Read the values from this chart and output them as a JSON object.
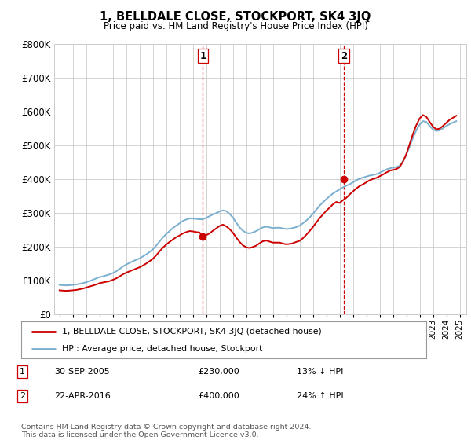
{
  "title": "1, BELLDALE CLOSE, STOCKPORT, SK4 3JQ",
  "subtitle": "Price paid vs. HM Land Registry's House Price Index (HPI)",
  "ylabel_ticks": [
    "£0",
    "£100K",
    "£200K",
    "£300K",
    "£400K",
    "£500K",
    "£600K",
    "£700K",
    "£800K"
  ],
  "ytick_values": [
    0,
    100000,
    200000,
    300000,
    400000,
    500000,
    600000,
    700000,
    800000
  ],
  "ylim": [
    0,
    800000
  ],
  "xlim_start": 1994.6,
  "xlim_end": 2025.5,
  "sale1_date": 2005.75,
  "sale1_price": 230000,
  "sale1_label": "1",
  "sale1_hpi_note": "13% ↓ HPI",
  "sale1_date_str": "30-SEP-2005",
  "sale2_date": 2016.32,
  "sale2_price": 400000,
  "sale2_label": "2",
  "sale2_hpi_note": "24% ↑ HPI",
  "sale2_date_str": "22-APR-2016",
  "legend_line1": "1, BELLDALE CLOSE, STOCKPORT, SK4 3JQ (detached house)",
  "legend_line2": "HPI: Average price, detached house, Stockport",
  "footnote": "Contains HM Land Registry data © Crown copyright and database right 2024.\nThis data is licensed under the Open Government Licence v3.0.",
  "red_color": "#cc0000",
  "blue_color": "#7aafcf",
  "dashed_color": "#cc0000",
  "background_color": "#ffffff",
  "grid_color": "#cccccc",
  "hpi_data_x": [
    1995.0,
    1995.25,
    1995.5,
    1995.75,
    1996.0,
    1996.25,
    1996.5,
    1996.75,
    1997.0,
    1997.25,
    1997.5,
    1997.75,
    1998.0,
    1998.25,
    1998.5,
    1998.75,
    1999.0,
    1999.25,
    1999.5,
    1999.75,
    2000.0,
    2000.25,
    2000.5,
    2000.75,
    2001.0,
    2001.25,
    2001.5,
    2001.75,
    2002.0,
    2002.25,
    2002.5,
    2002.75,
    2003.0,
    2003.25,
    2003.5,
    2003.75,
    2004.0,
    2004.25,
    2004.5,
    2004.75,
    2005.0,
    2005.25,
    2005.5,
    2005.75,
    2006.0,
    2006.25,
    2006.5,
    2006.75,
    2007.0,
    2007.25,
    2007.5,
    2007.75,
    2008.0,
    2008.25,
    2008.5,
    2008.75,
    2009.0,
    2009.25,
    2009.5,
    2009.75,
    2010.0,
    2010.25,
    2010.5,
    2010.75,
    2011.0,
    2011.25,
    2011.5,
    2011.75,
    2012.0,
    2012.25,
    2012.5,
    2012.75,
    2013.0,
    2013.25,
    2013.5,
    2013.75,
    2014.0,
    2014.25,
    2014.5,
    2014.75,
    2015.0,
    2015.25,
    2015.5,
    2015.75,
    2016.0,
    2016.25,
    2016.5,
    2016.75,
    2017.0,
    2017.25,
    2017.5,
    2017.75,
    2018.0,
    2018.25,
    2018.5,
    2018.75,
    2019.0,
    2019.25,
    2019.5,
    2019.75,
    2020.0,
    2020.25,
    2020.5,
    2020.75,
    2021.0,
    2021.25,
    2021.5,
    2021.75,
    2022.0,
    2022.25,
    2022.5,
    2022.75,
    2023.0,
    2023.25,
    2023.5,
    2023.75,
    2024.0,
    2024.25,
    2024.5,
    2024.75
  ],
  "hpi_data_y": [
    88000,
    87000,
    86500,
    87000,
    88000,
    89000,
    91000,
    93000,
    96000,
    99000,
    103000,
    107000,
    111000,
    113000,
    116000,
    119000,
    123000,
    128000,
    135000,
    142000,
    148000,
    153000,
    158000,
    162000,
    166000,
    172000,
    178000,
    185000,
    193000,
    204000,
    216000,
    228000,
    238000,
    247000,
    256000,
    263000,
    270000,
    277000,
    281000,
    284000,
    284000,
    283000,
    282000,
    282000,
    286000,
    291000,
    296000,
    300000,
    305000,
    308000,
    306000,
    298000,
    287000,
    272000,
    258000,
    248000,
    242000,
    240000,
    243000,
    247000,
    253000,
    258000,
    260000,
    258000,
    256000,
    257000,
    257000,
    255000,
    253000,
    254000,
    256000,
    259000,
    263000,
    270000,
    278000,
    287000,
    298000,
    310000,
    322000,
    332000,
    341000,
    350000,
    358000,
    364000,
    370000,
    376000,
    381000,
    385000,
    391000,
    397000,
    402000,
    405000,
    408000,
    411000,
    413000,
    415000,
    419000,
    424000,
    429000,
    432000,
    435000,
    436000,
    440000,
    453000,
    472000,
    497000,
    522000,
    545000,
    562000,
    572000,
    570000,
    558000,
    548000,
    543000,
    545000,
    551000,
    558000,
    563000,
    568000,
    572000
  ],
  "red_data_x": [
    1995.0,
    1995.25,
    1995.5,
    1995.75,
    1996.0,
    1996.25,
    1996.5,
    1996.75,
    1997.0,
    1997.25,
    1997.5,
    1997.75,
    1998.0,
    1998.25,
    1998.5,
    1998.75,
    1999.0,
    1999.25,
    1999.5,
    1999.75,
    2000.0,
    2000.25,
    2000.5,
    2000.75,
    2001.0,
    2001.25,
    2001.5,
    2001.75,
    2002.0,
    2002.25,
    2002.5,
    2002.75,
    2003.0,
    2003.25,
    2003.5,
    2003.75,
    2004.0,
    2004.25,
    2004.5,
    2004.75,
    2005.0,
    2005.25,
    2005.5,
    2005.75,
    2006.0,
    2006.25,
    2006.5,
    2006.75,
    2007.0,
    2007.25,
    2007.5,
    2007.75,
    2008.0,
    2008.25,
    2008.5,
    2008.75,
    2009.0,
    2009.25,
    2009.5,
    2009.75,
    2010.0,
    2010.25,
    2010.5,
    2010.75,
    2011.0,
    2011.25,
    2011.5,
    2011.75,
    2012.0,
    2012.25,
    2012.5,
    2012.75,
    2013.0,
    2013.25,
    2013.5,
    2013.75,
    2014.0,
    2014.25,
    2014.5,
    2014.75,
    2015.0,
    2015.25,
    2015.5,
    2015.75,
    2016.0,
    2016.25,
    2016.5,
    2016.75,
    2017.0,
    2017.25,
    2017.5,
    2017.75,
    2018.0,
    2018.25,
    2018.5,
    2018.75,
    2019.0,
    2019.25,
    2019.5,
    2019.75,
    2020.0,
    2020.25,
    2020.5,
    2020.75,
    2021.0,
    2021.25,
    2021.5,
    2021.75,
    2022.0,
    2022.25,
    2022.5,
    2022.75,
    2023.0,
    2023.25,
    2023.5,
    2023.75,
    2024.0,
    2024.25,
    2024.5,
    2024.75
  ],
  "red_data_y": [
    72000,
    71000,
    70500,
    71000,
    72000,
    73000,
    75000,
    77000,
    80000,
    83000,
    86000,
    89000,
    93000,
    95000,
    97000,
    99000,
    103000,
    107000,
    113000,
    119000,
    124000,
    128000,
    132000,
    136000,
    140000,
    145000,
    151000,
    158000,
    165000,
    175000,
    187000,
    198000,
    207000,
    215000,
    222000,
    229000,
    234000,
    240000,
    244000,
    247000,
    246000,
    244000,
    243000,
    230000,
    235000,
    240000,
    248000,
    255000,
    262000,
    266000,
    261000,
    253000,
    242000,
    228000,
    215000,
    205000,
    199000,
    197000,
    200000,
    204000,
    211000,
    217000,
    219000,
    216000,
    213000,
    213000,
    213000,
    210000,
    208000,
    209000,
    211000,
    215000,
    218000,
    226000,
    236000,
    247000,
    259000,
    272000,
    285000,
    296000,
    307000,
    316000,
    326000,
    333000,
    330000,
    338000,
    345000,
    355000,
    364000,
    373000,
    380000,
    385000,
    391000,
    397000,
    401000,
    404000,
    409000,
    414000,
    420000,
    425000,
    428000,
    430000,
    436000,
    452000,
    474000,
    504000,
    534000,
    560000,
    580000,
    590000,
    585000,
    570000,
    556000,
    548000,
    550000,
    558000,
    567000,
    576000,
    582000,
    588000
  ]
}
